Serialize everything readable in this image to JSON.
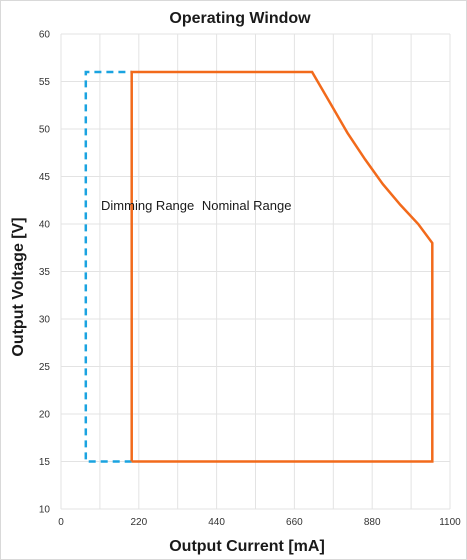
{
  "chart_data": {
    "type": "line",
    "title": "Operating Window",
    "xlabel": "Output Current [mA]",
    "ylabel": "Output Voltage [V]",
    "xlim": [
      0,
      1100
    ],
    "ylim": [
      10,
      60
    ],
    "x_ticks": [
      0,
      220,
      440,
      660,
      880,
      1100
    ],
    "y_ticks": [
      10,
      15,
      20,
      25,
      30,
      35,
      40,
      45,
      50,
      55,
      60
    ],
    "grid": true,
    "series": [
      {
        "name": "Dimming Range",
        "style": "dashed",
        "color": "#1aa3e0",
        "points": [
          [
            200,
            15
          ],
          [
            70,
            15
          ],
          [
            70,
            56
          ],
          [
            200,
            56
          ]
        ]
      },
      {
        "name": "Nominal Range",
        "style": "solid",
        "color": "#f26a1b",
        "points": [
          [
            200,
            15
          ],
          [
            200,
            56
          ],
          [
            710,
            56
          ],
          [
            760,
            52.8
          ],
          [
            810,
            49.6
          ],
          [
            860,
            46.8
          ],
          [
            910,
            44.2
          ],
          [
            960,
            42
          ],
          [
            1010,
            40
          ],
          [
            1050,
            38
          ],
          [
            1050,
            15
          ],
          [
            200,
            15
          ]
        ]
      }
    ],
    "annotations": [
      {
        "text": "Dimming Range",
        "x": 245,
        "y": 42
      },
      {
        "text": "Nominal Range",
        "x": 525,
        "y": 42
      }
    ]
  }
}
